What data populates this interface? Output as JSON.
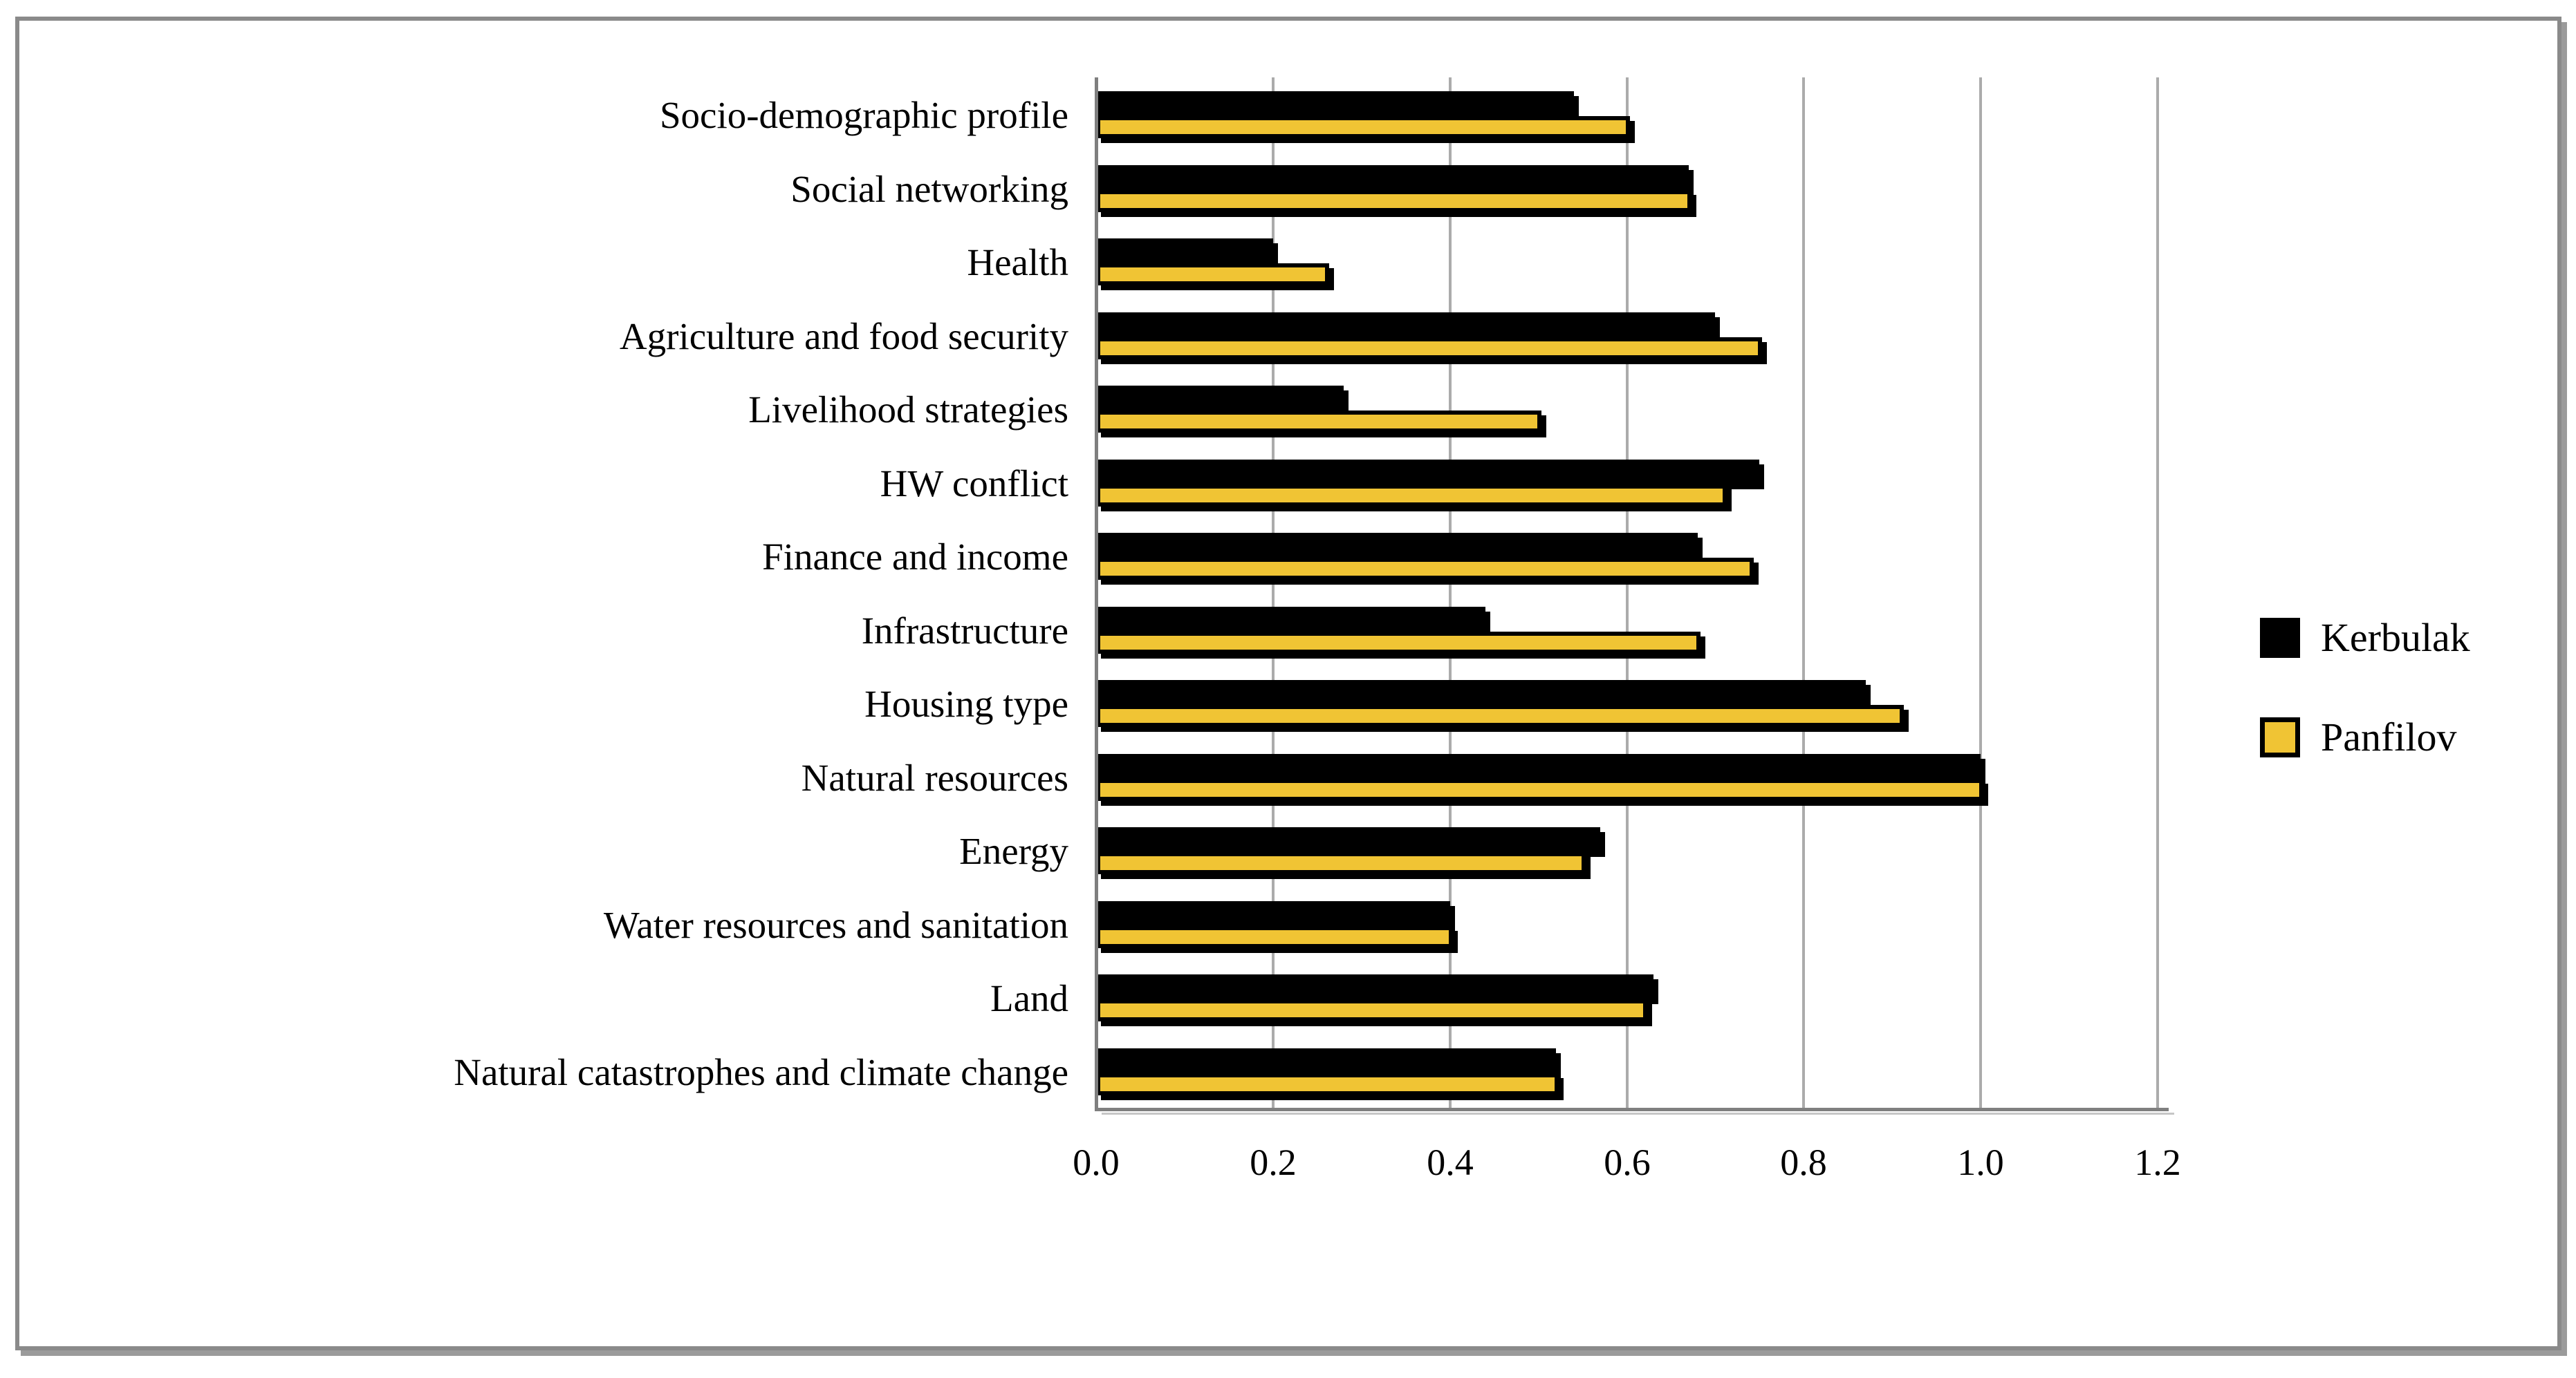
{
  "chart_data": {
    "type": "bar",
    "orientation": "horizontal",
    "title": "",
    "xlabel": "",
    "ylabel": "",
    "categories": [
      "Socio-demographic profile",
      "Social networking",
      "Health",
      "Agriculture and food security",
      "Livelihood strategies",
      "HW conflict",
      "Finance and income",
      "Infrastructure",
      "Housing type",
      "Natural resources",
      "Energy",
      "Water resources and sanitation",
      "Land",
      "Natural catastrophes and climate change"
    ],
    "series": [
      {
        "name": "Kerbulak",
        "color": "#000000",
        "values": [
          0.54,
          0.67,
          0.2,
          0.7,
          0.28,
          0.75,
          0.68,
          0.44,
          0.87,
          1.0,
          0.57,
          0.4,
          0.63,
          0.52
        ]
      },
      {
        "name": "Panfilov",
        "color": "#F0C434",
        "border_color": "#000000",
        "values": [
          0.6,
          0.67,
          0.26,
          0.75,
          0.5,
          0.71,
          0.74,
          0.68,
          0.91,
          1.0,
          0.55,
          0.4,
          0.62,
          0.52
        ]
      }
    ],
    "xlim": [
      0,
      1.2
    ],
    "x_ticks": [
      "0.0",
      "0.2",
      "0.4",
      "0.6",
      "0.8",
      "1.0",
      "1.2"
    ],
    "grid": true,
    "legend_position": "right-center"
  },
  "legend": {
    "items": [
      {
        "label": "Kerbulak",
        "swatch_color": "#000000",
        "swatch_border": "#000000"
      },
      {
        "label": "Panfilov",
        "swatch_color": "#F0C434",
        "swatch_border": "#000000"
      }
    ]
  },
  "style": {
    "background": "#FFFFFF",
    "figure_border": "#8A8A8A",
    "gridline_color": "#ABABAB",
    "axis_line_color": "#7F7F7F",
    "text_color": "#000000"
  }
}
